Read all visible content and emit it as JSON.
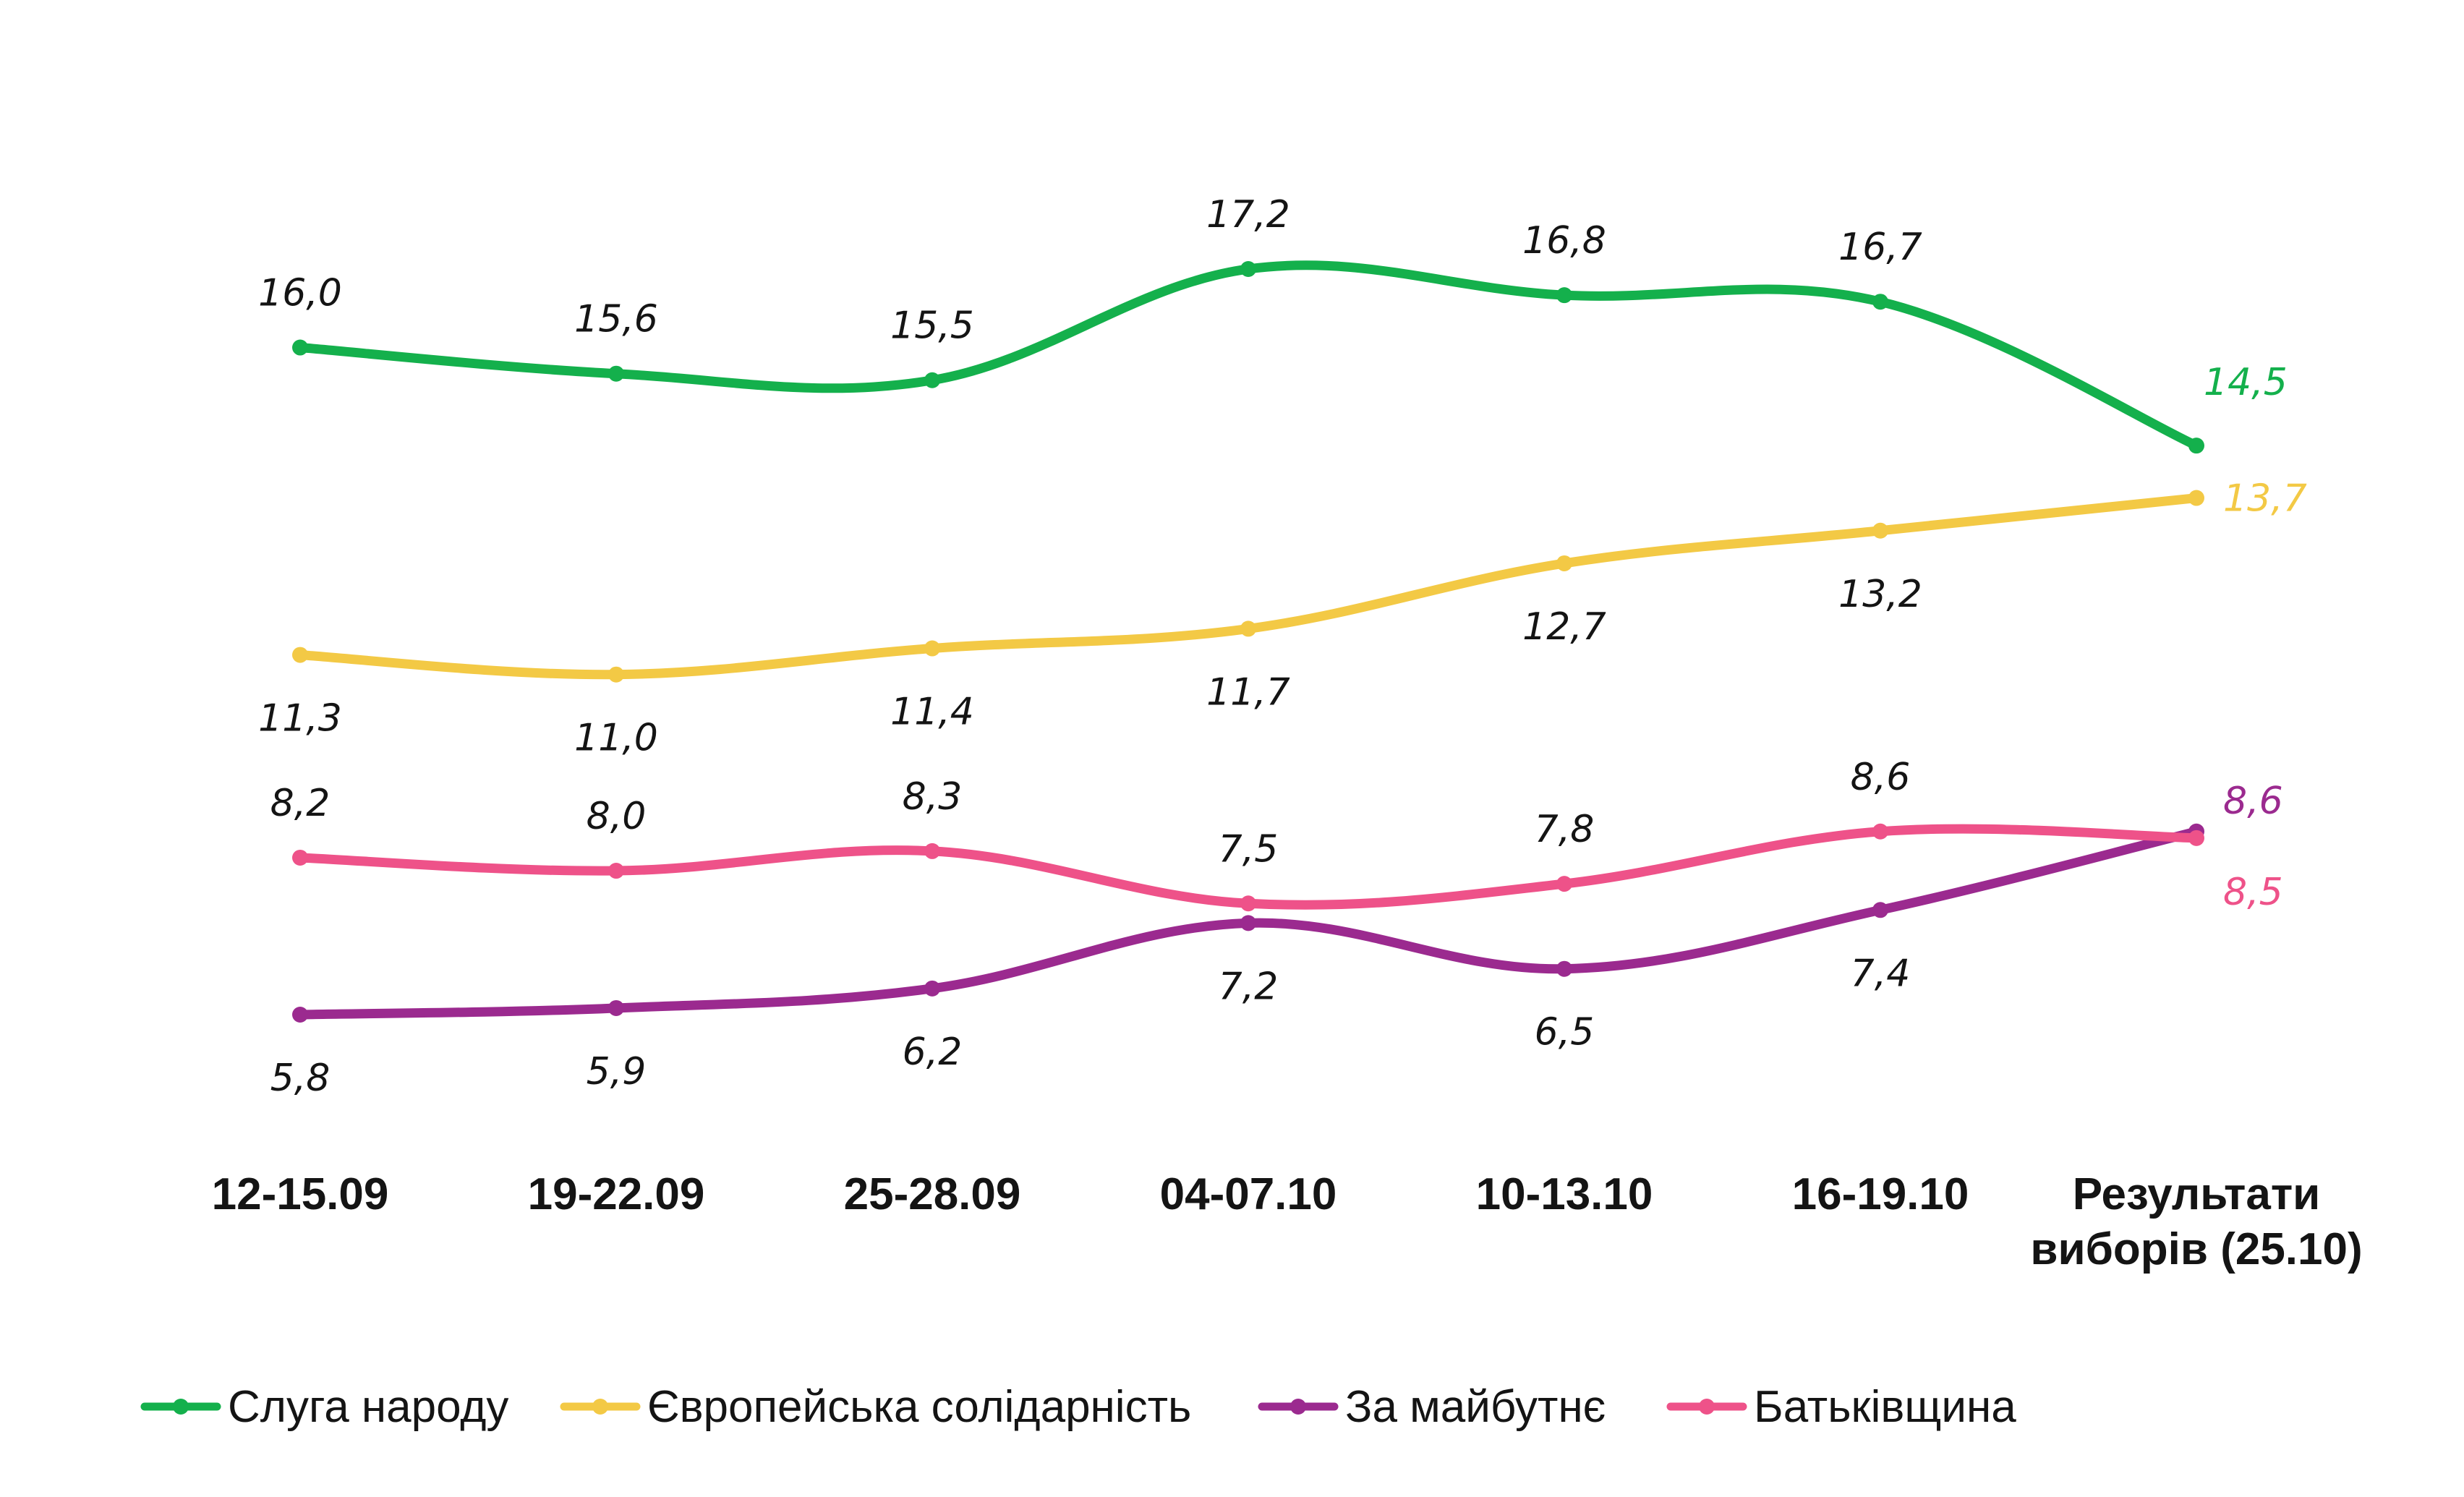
{
  "chart_data": {
    "type": "line",
    "categories": [
      "12-15.09",
      "19-22.09",
      "25-28.09",
      "04-07.10",
      "10-13.10",
      "16-19.10",
      [
        "Результати",
        "виборів (25.10)"
      ]
    ],
    "series": [
      {
        "name": "Слуга народу",
        "color": "#14b04c",
        "values": [
          16.0,
          15.6,
          15.5,
          17.2,
          16.8,
          16.7,
          14.5
        ],
        "labels": [
          "16,0",
          "15,6",
          "15,5",
          "17,2",
          "16,8",
          "16,7",
          "14,5"
        ]
      },
      {
        "name": "Європейська солідарність",
        "color": "#f3c945",
        "values": [
          11.3,
          11.0,
          11.4,
          11.7,
          12.7,
          13.2,
          13.7
        ],
        "labels": [
          "11,3",
          "11,0",
          "11,4",
          "11,7",
          "12,7",
          "13,2",
          "13,7"
        ]
      },
      {
        "name": "За майбутнє",
        "color": "#9b2a8f",
        "values": [
          5.8,
          5.9,
          6.2,
          7.2,
          6.5,
          7.4,
          8.6
        ],
        "labels": [
          "5,8",
          "5,9",
          "6,2",
          "7,2",
          "6,5",
          "7,4",
          "8,6"
        ]
      },
      {
        "name": "Батьківщина",
        "color": "#ee5289",
        "values": [
          8.2,
          8.0,
          8.3,
          7.5,
          7.8,
          8.6,
          8.5
        ],
        "labels": [
          "8,2",
          "8,0",
          "8,3",
          "7,5",
          "7,8",
          "8,6",
          "8,5"
        ]
      }
    ],
    "label_color_default": "#141414",
    "legend": "bottom",
    "grid": false
  }
}
